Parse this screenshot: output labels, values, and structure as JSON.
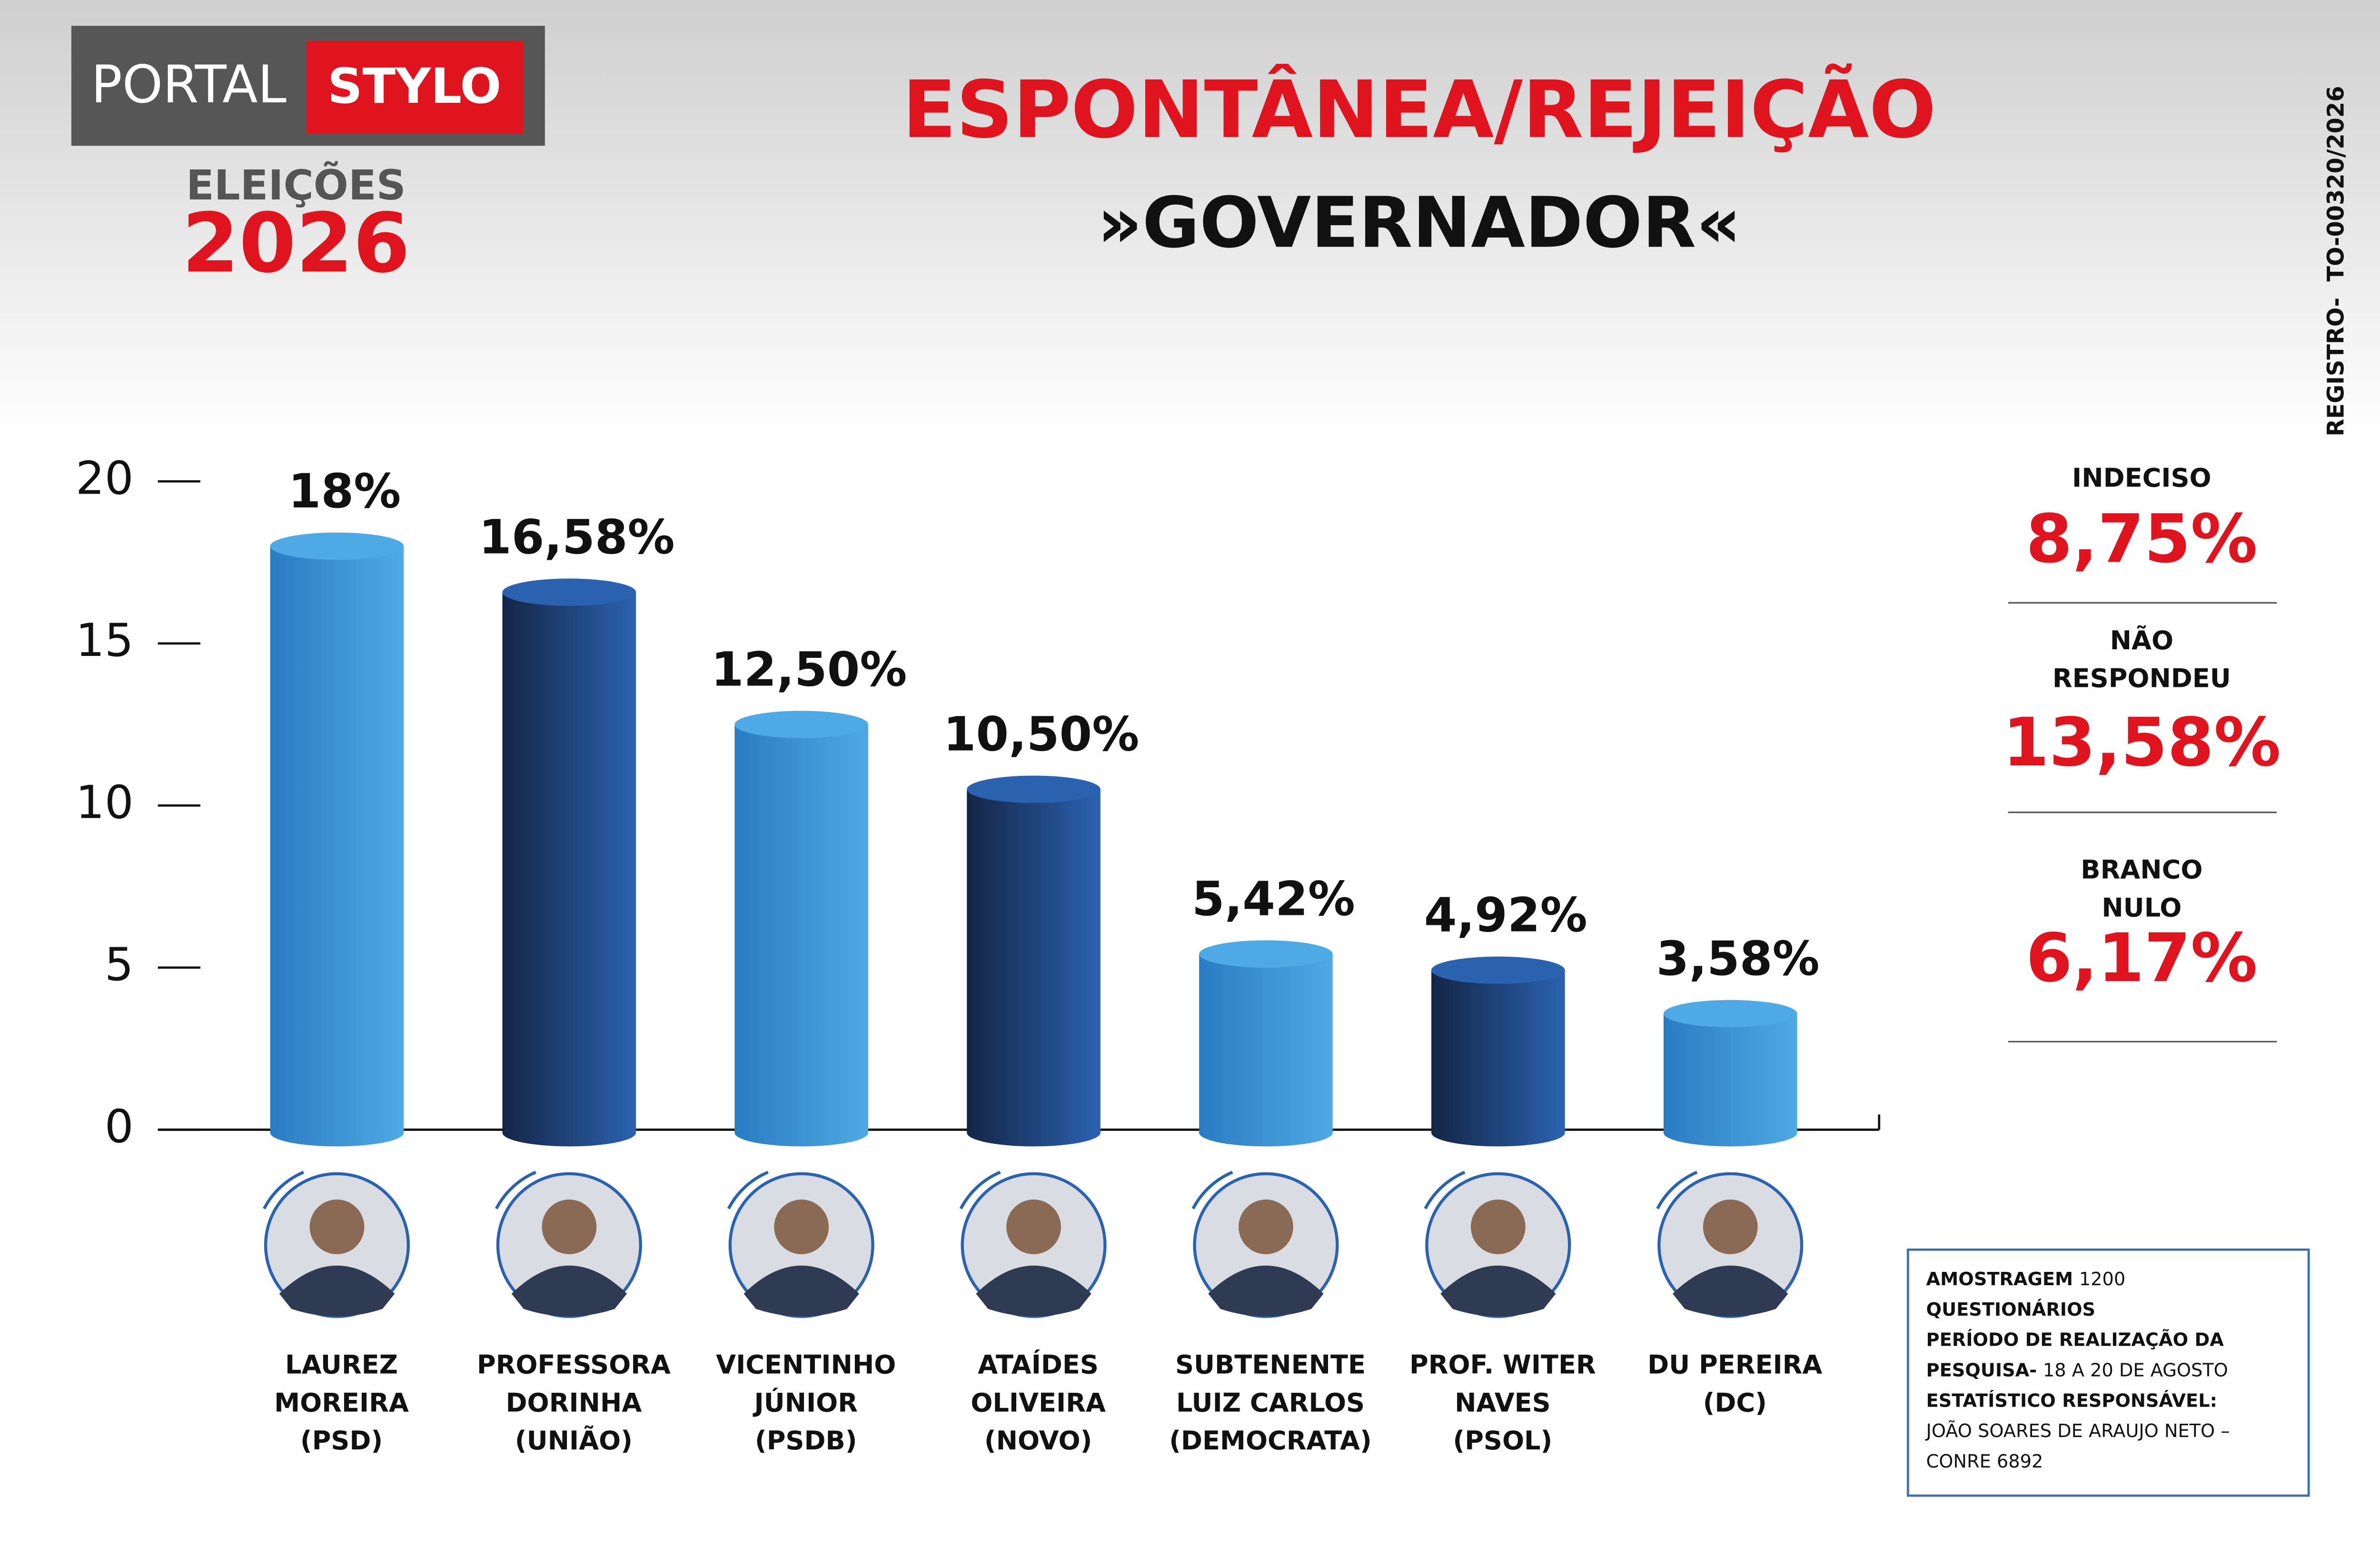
{
  "header": {
    "logo_left": "PORTAL",
    "logo_right": "STYLO",
    "badge_top": "ELEIÇÕES",
    "badge_year": "2026",
    "registration": "REGISTRO-  TO-00320/2026"
  },
  "chart_data": {
    "type": "bar",
    "title": "ESPONTÂNEA/REJEIÇÃO",
    "subtitle": "»GOVERNADOR«",
    "categories": [
      [
        "LAUREZ",
        "MOREIRA",
        "(PSD)"
      ],
      [
        "PROFESSORA",
        "DORINHA",
        "(UNIÃO)"
      ],
      [
        "VICENTINHO",
        "JÚNIOR",
        "(PSDB)"
      ],
      [
        "ATAÍDES",
        "OLIVEIRA",
        "(NOVO)"
      ],
      [
        "SUBTENENTE",
        "LUIZ CARLOS",
        "(DEMOCRATA)"
      ],
      [
        "PROF. WITER",
        "NAVES",
        "(PSOL)"
      ],
      [
        "DU PEREIRA",
        "(DC)"
      ]
    ],
    "values": [
      18,
      16.58,
      12.5,
      10.5,
      5.42,
      4.92,
      3.58
    ],
    "value_labels": [
      "18%",
      "16,58%",
      "12,50%",
      "10,50%",
      "5,42%",
      "4,92%",
      "3,58%"
    ],
    "colors": [
      "#4fa9e4",
      "#2b62b0",
      "#4fa9e4",
      "#2b62b0",
      "#4fa9e4",
      "#2b62b0",
      "#4fa9e4"
    ],
    "ylim": [
      0,
      20
    ],
    "yticks": [
      0,
      5,
      10,
      15,
      20
    ]
  },
  "side_stats": [
    {
      "label": [
        "INDECISO"
      ],
      "value": "8,75%"
    },
    {
      "label": [
        "NÃO",
        "RESPONDEU"
      ],
      "value": "13,58%"
    },
    {
      "label": [
        "BRANCO",
        "NULO"
      ],
      "value": "6,17%"
    }
  ],
  "methodology": [
    [
      {
        "text": "AMOSTRAGEM",
        "bold": true
      },
      {
        "text": "1200",
        "bold": false
      }
    ],
    [
      {
        "text": "QUESTIONÁRIOS",
        "bold": true
      }
    ],
    [
      {
        "text": "PERÍODO DE REALIZAÇÃO DA",
        "bold": true
      }
    ],
    [
      {
        "text": "PESQUISA-",
        "bold": true
      },
      {
        "text": "18 A 20 DE AGOSTO",
        "bold": false
      }
    ],
    [
      {
        "text": "ESTATÍSTICO RESPONSÁVEL:",
        "bold": true
      }
    ],
    [
      {
        "text": "JOÃO SOARES DE ARAUJO NETO –",
        "bold": false
      }
    ],
    [
      {
        "text": "CONRE 6892",
        "bold": false
      }
    ]
  ]
}
